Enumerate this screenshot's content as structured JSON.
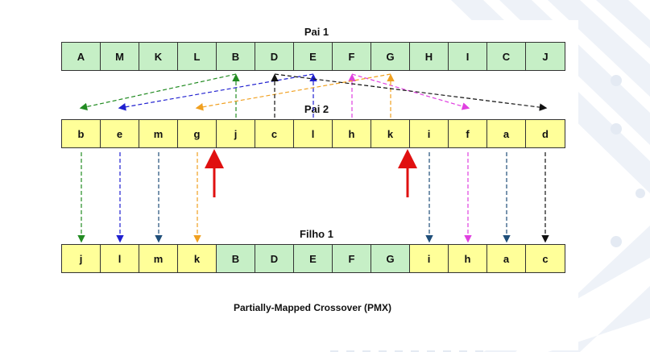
{
  "parent1": {
    "title": "Pai 1",
    "genes": [
      "A",
      "M",
      "K",
      "L",
      "B",
      "D",
      "E",
      "F",
      "G",
      "H",
      "I",
      "C",
      "J"
    ]
  },
  "parent2": {
    "title": "Pai 2",
    "genes": [
      "b",
      "e",
      "m",
      "g",
      "j",
      "c",
      "l",
      "h",
      "k",
      "i",
      "f",
      "a",
      "d"
    ]
  },
  "child": {
    "title": "Filho 1",
    "genes": [
      "j",
      "l",
      "m",
      "k",
      "B",
      "D",
      "E",
      "F",
      "G",
      "i",
      "h",
      "a",
      "c"
    ],
    "segment_from_parent1": [
      4,
      8
    ]
  },
  "caption": "Partially-Mapped Crossover (PMX)",
  "colors": {
    "green_cell": "#c6efc6",
    "yellow_cell": "#ffff99",
    "cut_marker": "#e01010"
  },
  "mapping_arrows": [
    {
      "from": 4,
      "to": 0,
      "color": "#228b22"
    },
    {
      "from": 6,
      "to": 1,
      "color": "#2020d0"
    },
    {
      "from": 7,
      "to": 10,
      "color": "#e040e0"
    },
    {
      "from": 8,
      "to": 3,
      "color": "#f0a020"
    },
    {
      "from": 5,
      "to": 12,
      "color": "#111111"
    }
  ],
  "drop_arrows": [
    {
      "col": 0,
      "color": "#228b22"
    },
    {
      "col": 1,
      "color": "#2020d0"
    },
    {
      "col": 2,
      "color": "#1f4e79"
    },
    {
      "col": 3,
      "color": "#f0a020"
    },
    {
      "col": 9,
      "color": "#1f4e79"
    },
    {
      "col": 10,
      "color": "#e040e0"
    },
    {
      "col": 11,
      "color": "#1f4e79"
    },
    {
      "col": 12,
      "color": "#111111"
    }
  ],
  "cut_points": [
    4,
    9
  ]
}
